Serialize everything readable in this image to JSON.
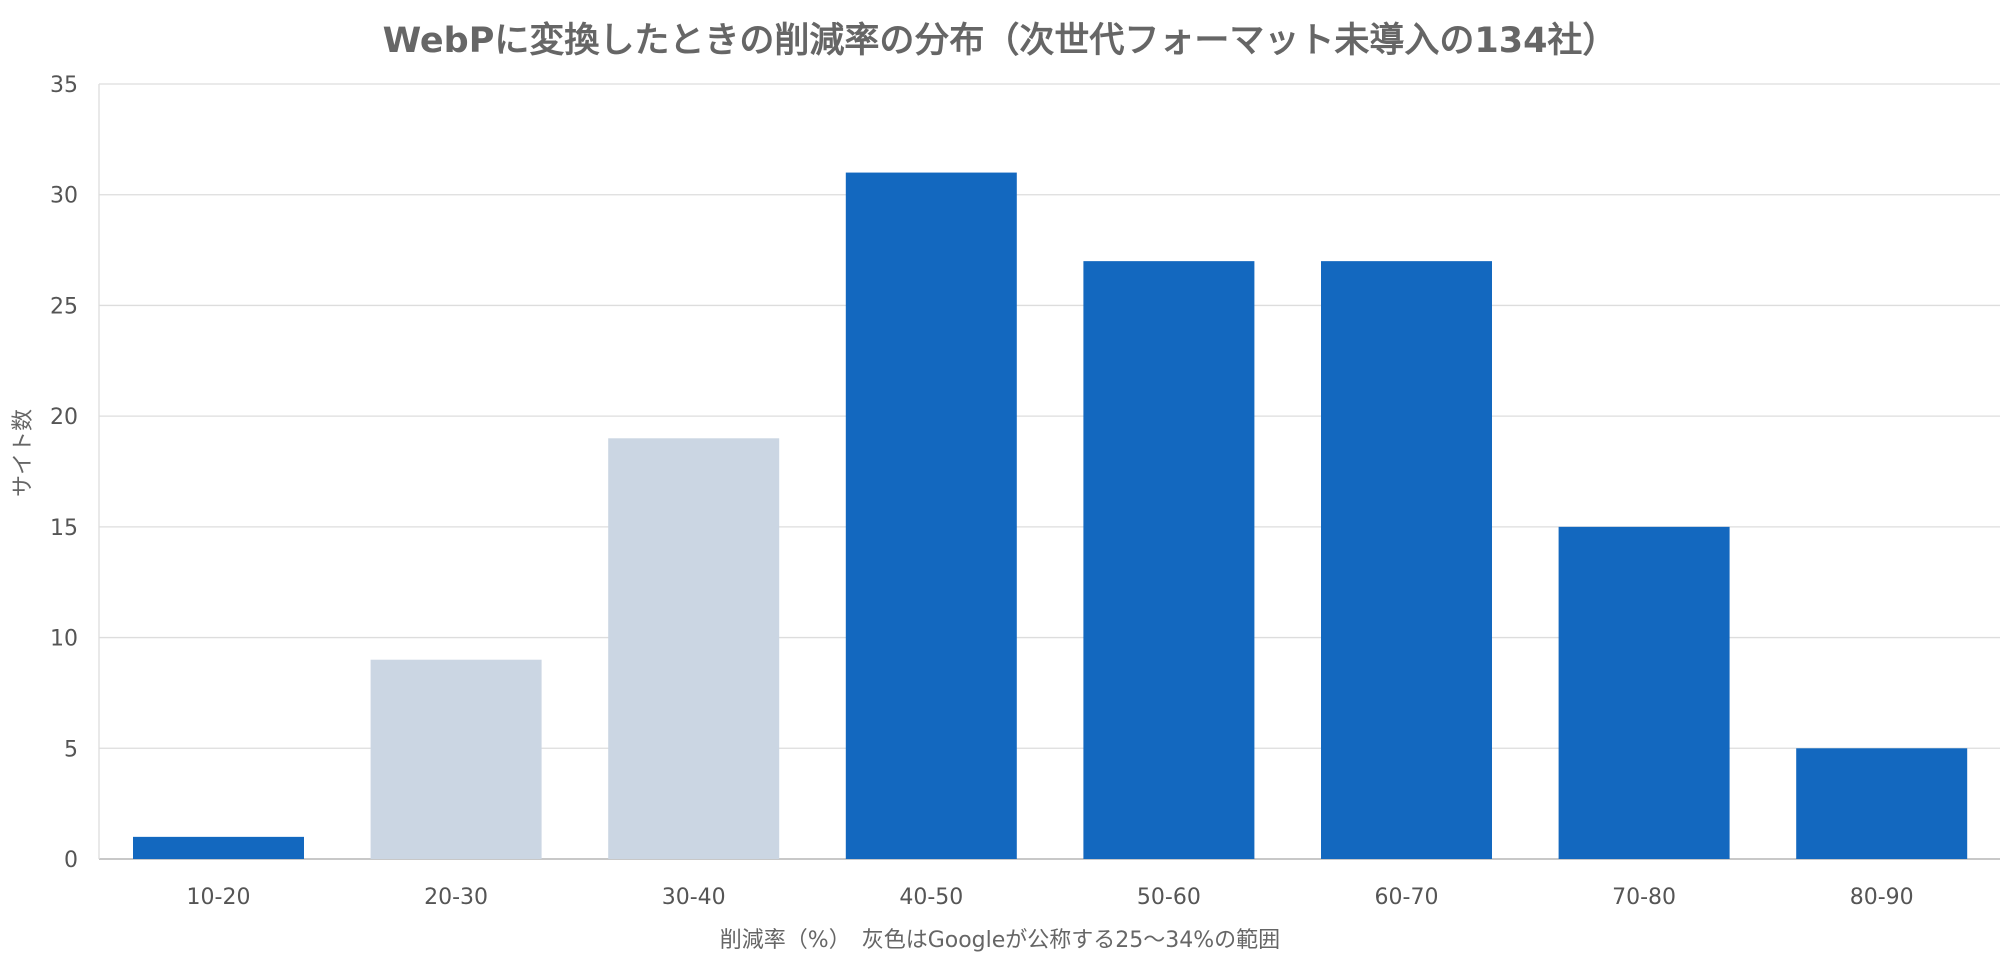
{
  "chart_data": {
    "type": "bar",
    "title": "WebPに変換したときの削減率の分布（次世代フォーマット未導入の134社）",
    "xlabel": "削減率（%）　灰色はGoogleが公称する25〜34%の範囲",
    "ylabel": "サイト数",
    "categories": [
      "10-20",
      "20-30",
      "30-40",
      "40-50",
      "50-60",
      "60-70",
      "70-80",
      "80-90"
    ],
    "values": [
      1,
      9,
      19,
      31,
      27,
      27,
      15,
      5
    ],
    "highlight": [
      false,
      true,
      true,
      false,
      false,
      false,
      false,
      false
    ],
    "colors": {
      "primary": "#1368bf",
      "highlight": "#cbd6e3"
    },
    "ylim": [
      0,
      35
    ],
    "yticks": [
      0,
      5,
      10,
      15,
      20,
      25,
      30,
      35
    ],
    "grid": true,
    "legend": "none"
  }
}
